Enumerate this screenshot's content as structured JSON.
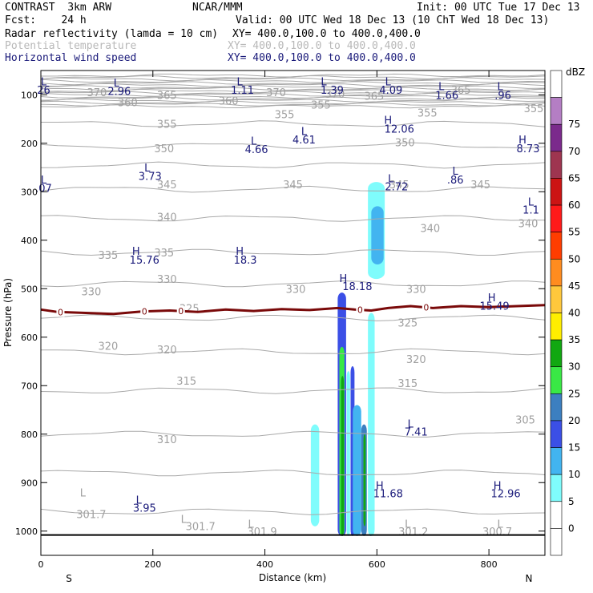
{
  "header": {
    "model": "CONTRAST  3km ARW",
    "org": "NCAR/MMM",
    "init": "Init: 00 UTC Tue 17 Dec 13",
    "fcst": "Fcst:    24 h",
    "valid": "Valid: 00 UTC Wed 18 Dec 13 (10 ChT Wed 18 Dec 13)",
    "field1": "Radar reflectivity (lamda = 10 cm)",
    "xy1": "XY= 400.0,100.0 to 400.0,400.0",
    "field2": "Potential temperature",
    "xy2": "XY= 400.0,100.0 to 400.0,400.0",
    "field3": "Horizontal wind speed",
    "xy3": "XY= 400.0,100.0 to 400.0,400.0"
  },
  "chart_data": {
    "type": "heatmap",
    "xlabel": "Distance (km)",
    "ylabel": "Pressure (hPa)",
    "xlim": [
      0,
      900
    ],
    "ylim": [
      1050,
      50
    ],
    "x_ticks": [
      0,
      200,
      400,
      600,
      800
    ],
    "y_ticks": [
      100,
      200,
      300,
      400,
      500,
      600,
      700,
      800,
      900,
      1000
    ],
    "x_end_labels": {
      "left": "S",
      "right": "N"
    },
    "colorbar": {
      "unit": "dBZ",
      "levels": [
        "-",
        "0",
        "5",
        "10",
        "15",
        "20",
        "25",
        "30",
        "35",
        "40",
        "45",
        "50",
        "55",
        "60",
        "65",
        "70",
        "75"
      ],
      "label_levels": [
        0,
        5,
        10,
        15,
        20,
        25,
        30,
        35,
        40,
        45,
        50,
        55,
        60,
        65,
        70,
        75
      ],
      "colors": [
        "#ffffff",
        "#ffffff",
        "#7ffcfc",
        "#42b4f0",
        "#3b4fe6",
        "#3c7fc0",
        "#39e845",
        "#11a811",
        "#ffee00",
        "#ffc83c",
        "#ff8c1f",
        "#ff3d00",
        "#ff1a1a",
        "#cc1414",
        "#9e3550",
        "#7b2a8c",
        "#b47ec4",
        "#ffffff"
      ]
    },
    "theta_labels": [
      {
        "t": "370",
        "x": 100,
        "p": 95
      },
      {
        "t": "365",
        "x": 225,
        "p": 100
      },
      {
        "t": "360",
        "x": 155,
        "p": 115
      },
      {
        "t": "360",
        "x": 335,
        "p": 112
      },
      {
        "t": "370",
        "x": 420,
        "p": 95
      },
      {
        "t": "370",
        "x": 525,
        "p": 98
      },
      {
        "t": "365",
        "x": 595,
        "p": 102
      },
      {
        "t": "365",
        "x": 750,
        "p": 90
      },
      {
        "t": "355",
        "x": 880,
        "p": 128
      },
      {
        "t": "355",
        "x": 435,
        "p": 140
      },
      {
        "t": "355",
        "x": 690,
        "p": 137
      },
      {
        "t": "355",
        "x": 225,
        "p": 160
      },
      {
        "t": "355",
        "x": 500,
        "p": 120
      },
      {
        "t": "350",
        "x": 220,
        "p": 210
      },
      {
        "t": "350",
        "x": 650,
        "p": 198
      },
      {
        "t": "345",
        "x": 225,
        "p": 285
      },
      {
        "t": "345",
        "x": 450,
        "p": 285
      },
      {
        "t": "345",
        "x": 640,
        "p": 285
      },
      {
        "t": "345",
        "x": 785,
        "p": 285
      },
      {
        "t": "340",
        "x": 225,
        "p": 352
      },
      {
        "t": "340",
        "x": 695,
        "p": 375
      },
      {
        "t": "340",
        "x": 870,
        "p": 365
      },
      {
        "t": "335",
        "x": 120,
        "p": 430
      },
      {
        "t": "335",
        "x": 220,
        "p": 425
      },
      {
        "t": "330",
        "x": 90,
        "p": 505
      },
      {
        "t": "330",
        "x": 225,
        "p": 480
      },
      {
        "t": "330",
        "x": 455,
        "p": 500
      },
      {
        "t": "330",
        "x": 670,
        "p": 500
      },
      {
        "t": "325",
        "x": 265,
        "p": 540
      },
      {
        "t": "325",
        "x": 655,
        "p": 570
      },
      {
        "t": "320",
        "x": 120,
        "p": 618
      },
      {
        "t": "320",
        "x": 225,
        "p": 625
      },
      {
        "t": "320",
        "x": 670,
        "p": 645
      },
      {
        "t": "315",
        "x": 260,
        "p": 690
      },
      {
        "t": "315",
        "x": 655,
        "p": 695
      },
      {
        "t": "310",
        "x": 225,
        "p": 810
      },
      {
        "t": "305",
        "x": 865,
        "p": 770
      }
    ],
    "theta_low_labels": [
      {
        "t": "L",
        "x": 75,
        "p": 920,
        "v": "301.7",
        "vx": 90,
        "vp": 965
      },
      {
        "t": "L",
        "x": 255,
        "p": 975,
        "v": "301.7",
        "vx": 285,
        "vp": 990
      },
      {
        "t": "L",
        "x": 375,
        "p": 985,
        "v": "301.9",
        "vx": 395,
        "vp": 1000
      },
      {
        "t": "L",
        "x": 655,
        "p": 985,
        "v": "301.2",
        "vx": 665,
        "vp": 1000
      },
      {
        "t": "L",
        "x": 820,
        "p": 985,
        "v": "300.7",
        "vx": 815,
        "vp": 1000
      }
    ],
    "wind_extrema": [
      {
        "t": "L",
        "v": "26",
        "x": 5,
        "p": 72,
        "vx": 5,
        "vp": 90
      },
      {
        "t": "L",
        "v": "2.96",
        "x": 135,
        "p": 75,
        "vx": 140,
        "vp": 92
      },
      {
        "t": "L",
        "v": "1.11",
        "x": 355,
        "p": 72,
        "vx": 360,
        "vp": 90
      },
      {
        "t": "L",
        "v": "1.39",
        "x": 505,
        "p": 72,
        "vx": 520,
        "vp": 90
      },
      {
        "t": "L",
        "v": "4.09",
        "x": 620,
        "p": 72,
        "vx": 625,
        "vp": 90
      },
      {
        "t": "L",
        "v": "1.66",
        "x": 715,
        "p": 82,
        "vx": 725,
        "vp": 100
      },
      {
        "t": "L",
        "v": ".96",
        "x": 820,
        "p": 82,
        "vx": 825,
        "vp": 100
      },
      {
        "t": "H",
        "v": "12.06",
        "x": 620,
        "p": 152,
        "vx": 640,
        "vp": 170
      },
      {
        "t": "L",
        "v": "4.61",
        "x": 470,
        "p": 175,
        "vx": 470,
        "vp": 192
      },
      {
        "t": "L",
        "v": "4.66",
        "x": 380,
        "p": 195,
        "vx": 385,
        "vp": 212
      },
      {
        "t": "H",
        "v": "8.73",
        "x": 860,
        "p": 192,
        "vx": 870,
        "vp": 210
      },
      {
        "t": "L",
        "v": "3.73",
        "x": 190,
        "p": 250,
        "vx": 195,
        "vp": 267
      },
      {
        "t": "L",
        "v": ".07",
        "x": 5,
        "p": 275,
        "vx": 5,
        "vp": 292
      },
      {
        "t": "L",
        "v": "2.72",
        "x": 625,
        "p": 272,
        "vx": 635,
        "vp": 289
      },
      {
        "t": "L",
        "v": ".86",
        "x": 740,
        "p": 257,
        "vx": 740,
        "vp": 275
      },
      {
        "t": "L",
        "v": "1.1",
        "x": 875,
        "p": 320,
        "vx": 875,
        "vp": 337
      },
      {
        "t": "H",
        "v": "15.76",
        "x": 170,
        "p": 422,
        "vx": 185,
        "vp": 440
      },
      {
        "t": "H",
        "v": "18.3",
        "x": 355,
        "p": 422,
        "vx": 365,
        "vp": 440
      },
      {
        "t": "H",
        "v": "18.18",
        "x": 540,
        "p": 478,
        "vx": 565,
        "vp": 495
      },
      {
        "t": "H",
        "v": "15.49",
        "x": 805,
        "p": 518,
        "vx": 810,
        "vp": 535
      },
      {
        "t": "L",
        "v": "7.41",
        "x": 660,
        "p": 778,
        "vx": 670,
        "vp": 795
      },
      {
        "t": "L",
        "v": "3.95",
        "x": 175,
        "p": 935,
        "vx": 185,
        "vp": 952
      },
      {
        "t": "H",
        "v": "11.68",
        "x": 605,
        "p": 905,
        "vx": 620,
        "vp": 922
      },
      {
        "t": "H",
        "v": "12.96",
        "x": 815,
        "p": 905,
        "vx": 830,
        "vp": 922
      }
    ],
    "zero_isotherm": {
      "label": "0",
      "points": [
        [
          0,
          543
        ],
        [
          30,
          548
        ],
        [
          80,
          550
        ],
        [
          130,
          552
        ],
        [
          180,
          547
        ],
        [
          230,
          545
        ],
        [
          280,
          548
        ],
        [
          330,
          543
        ],
        [
          380,
          546
        ],
        [
          430,
          542
        ],
        [
          480,
          544
        ],
        [
          530,
          540
        ],
        [
          560,
          543
        ],
        [
          590,
          545
        ],
        [
          620,
          540
        ],
        [
          660,
          536
        ],
        [
          700,
          540
        ],
        [
          750,
          536
        ],
        [
          800,
          538
        ],
        [
          850,
          536
        ],
        [
          900,
          534
        ]
      ],
      "label_x": [
        35,
        185,
        250,
        570,
        688
      ]
    },
    "ground_p": 1008,
    "reflectivity_cells": [
      {
        "x": [
          486,
          492
        ],
        "p": [
          800,
          935
        ],
        "dbz": 15
      },
      {
        "x": [
          482,
          497
        ],
        "p": [
          780,
          990
        ],
        "dbz": 5
      },
      {
        "x": [
          530,
          545
        ],
        "p": [
          508,
          1010
        ],
        "dbz": 15
      },
      {
        "x": [
          533,
          542
        ],
        "p": [
          620,
          1010
        ],
        "dbz": 25
      },
      {
        "x": [
          536,
          541
        ],
        "p": [
          680,
          1010
        ],
        "dbz": 30
      },
      {
        "x": [
          546,
          552
        ],
        "p": [
          670,
          1010
        ],
        "dbz": 5
      },
      {
        "x": [
          553,
          560
        ],
        "p": [
          660,
          1010
        ],
        "dbz": 15
      },
      {
        "x": [
          557,
          572
        ],
        "p": [
          740,
          1010
        ],
        "dbz": 10
      },
      {
        "x": [
          572,
          582
        ],
        "p": [
          780,
          1010
        ],
        "dbz": 20
      },
      {
        "x": [
          576,
          580
        ],
        "p": [
          800,
          990
        ],
        "dbz": 30
      },
      {
        "x": [
          585,
          593
        ],
        "p": [
          560,
          1010
        ],
        "dbz": 15
      },
      {
        "x": [
          587,
          592
        ],
        "p": [
          620,
          990
        ],
        "dbz": 25
      },
      {
        "x": [
          584,
          596
        ],
        "p": [
          550,
          1010
        ],
        "dbz": 5
      },
      {
        "x": [
          584,
          614
        ],
        "p": [
          280,
          480
        ],
        "dbz": 5
      },
      {
        "x": [
          590,
          612
        ],
        "p": [
          330,
          450
        ],
        "dbz": 10
      }
    ]
  }
}
